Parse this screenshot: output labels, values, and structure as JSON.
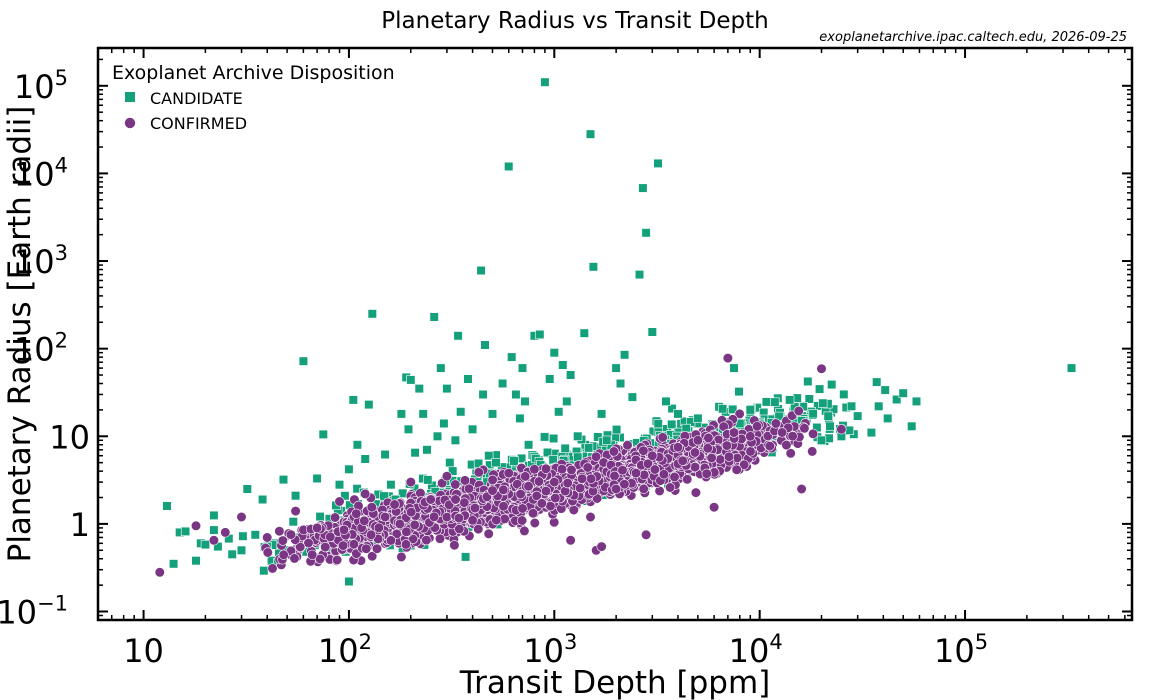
{
  "chart_data": {
    "type": "scatter",
    "title": "Planetary Radius vs Transit Depth",
    "source_note": "exoplanetarchive.ipac.caltech.edu, 2026-09-25",
    "xlabel": "Transit Depth [ppm]",
    "ylabel": "Planetary Radius [Earth radii]",
    "xscale": "log",
    "yscale": "log",
    "xlim": [
      6,
      650000
    ],
    "ylim": [
      0.08,
      270000
    ],
    "x_ticks": [
      {
        "value": 10,
        "base": "10",
        "exp": ""
      },
      {
        "value": 100,
        "base": "10",
        "exp": "2"
      },
      {
        "value": 1000,
        "base": "10",
        "exp": "3"
      },
      {
        "value": 10000,
        "base": "10",
        "exp": "4"
      },
      {
        "value": 100000,
        "base": "10",
        "exp": "5"
      }
    ],
    "y_ticks": [
      {
        "value": 0.1,
        "base": "10",
        "exp": "−1"
      },
      {
        "value": 1,
        "base": "1",
        "exp": ""
      },
      {
        "value": 10,
        "base": "10",
        "exp": ""
      },
      {
        "value": 100,
        "base": "10",
        "exp": "2"
      },
      {
        "value": 1000,
        "base": "10",
        "exp": "3"
      },
      {
        "value": 10000,
        "base": "10",
        "exp": "4"
      },
      {
        "value": 100000,
        "base": "10",
        "exp": "5"
      }
    ],
    "grid": false,
    "legend": {
      "title": "Exoplanet Archive Disposition",
      "placement": "top-left"
    },
    "series": [
      {
        "name": "CANDIDATE",
        "marker": "square",
        "color": "#14a07a",
        "points": [
          [
            13,
            1.6
          ],
          [
            14,
            0.35
          ],
          [
            15,
            0.8
          ],
          [
            16,
            0.82
          ],
          [
            18,
            0.38
          ],
          [
            19,
            0.6
          ],
          [
            20,
            0.58
          ],
          [
            22,
            1.25
          ],
          [
            22,
            0.85
          ],
          [
            23,
            0.55
          ],
          [
            26,
            0.68
          ],
          [
            27,
            0.45
          ],
          [
            30,
            0.5
          ],
          [
            32,
            2.5
          ],
          [
            35,
            0.75
          ],
          [
            38,
            1.9
          ],
          [
            40,
            0.55
          ],
          [
            42,
            0.38
          ],
          [
            45,
            0.36
          ],
          [
            48,
            3.2
          ],
          [
            50,
            0.5
          ],
          [
            55,
            2.1
          ],
          [
            60,
            72
          ],
          [
            62,
            0.48
          ],
          [
            70,
            3.3
          ],
          [
            75,
            10.5
          ],
          [
            80,
            0.5
          ],
          [
            90,
            2.8
          ],
          [
            100,
            0.22
          ],
          [
            100,
            4.2
          ],
          [
            105,
            26
          ],
          [
            110,
            8
          ],
          [
            120,
            5.5
          ],
          [
            125,
            23
          ],
          [
            130,
            250
          ],
          [
            140,
            1.0
          ],
          [
            150,
            6.2
          ],
          [
            160,
            2.8
          ],
          [
            170,
            1.3
          ],
          [
            180,
            18
          ],
          [
            185,
            0.9
          ],
          [
            190,
            47
          ],
          [
            195,
            12
          ],
          [
            200,
            44
          ],
          [
            210,
            6.5
          ],
          [
            220,
            35
          ],
          [
            230,
            18
          ],
          [
            240,
            7
          ],
          [
            250,
            0.9
          ],
          [
            260,
            230
          ],
          [
            270,
            10
          ],
          [
            280,
            60
          ],
          [
            290,
            14
          ],
          [
            300,
            35
          ],
          [
            310,
            5
          ],
          [
            320,
            4
          ],
          [
            330,
            9
          ],
          [
            340,
            140
          ],
          [
            350,
            19
          ],
          [
            360,
            2.2
          ],
          [
            370,
            0.42
          ],
          [
            380,
            45
          ],
          [
            400,
            12
          ],
          [
            420,
            3
          ],
          [
            440,
            780
          ],
          [
            450,
            30
          ],
          [
            460,
            110
          ],
          [
            480,
            6
          ],
          [
            500,
            18
          ],
          [
            520,
            5
          ],
          [
            560,
            40
          ],
          [
            600,
            12000
          ],
          [
            620,
            80
          ],
          [
            650,
            30
          ],
          [
            680,
            16
          ],
          [
            700,
            60
          ],
          [
            720,
            25
          ],
          [
            750,
            8
          ],
          [
            800,
            140
          ],
          [
            850,
            145
          ],
          [
            900,
            110000
          ],
          [
            950,
            45
          ],
          [
            1000,
            90
          ],
          [
            1050,
            19
          ],
          [
            1100,
            65
          ],
          [
            1150,
            25
          ],
          [
            1200,
            50
          ],
          [
            1300,
            10
          ],
          [
            1400,
            150
          ],
          [
            1500,
            28000
          ],
          [
            1550,
            860
          ],
          [
            1700,
            18
          ],
          [
            1800,
            9
          ],
          [
            2000,
            60
          ],
          [
            2100,
            40
          ],
          [
            2200,
            85
          ],
          [
            2400,
            28
          ],
          [
            2600,
            700
          ],
          [
            2700,
            6800
          ],
          [
            2800,
            2100
          ],
          [
            3000,
            155
          ],
          [
            3200,
            13000
          ],
          [
            3500,
            25
          ],
          [
            4000,
            18
          ],
          [
            4500,
            10
          ],
          [
            5000,
            16
          ],
          [
            6000,
            12
          ],
          [
            7000,
            8
          ],
          [
            7500,
            60
          ],
          [
            8000,
            14
          ],
          [
            8500,
            6
          ],
          [
            9000,
            20
          ],
          [
            10000,
            14
          ],
          [
            12000,
            13
          ],
          [
            14000,
            26
          ],
          [
            16000,
            15
          ],
          [
            20000,
            9
          ],
          [
            22000,
            13
          ],
          [
            25000,
            10
          ],
          [
            28000,
            22
          ],
          [
            30000,
            17
          ],
          [
            35000,
            11
          ],
          [
            38000,
            22
          ],
          [
            42000,
            16
          ],
          [
            50000,
            31
          ],
          [
            55000,
            13
          ],
          [
            58000,
            25
          ],
          [
            330000,
            60
          ]
        ],
        "cloud": {
          "count": 850,
          "seed": 11,
          "x_range": [
            25,
            60000
          ],
          "y_intercept": 1.0,
          "y_slope": 0.55,
          "y_scatter": 0.16
        }
      },
      {
        "name": "CONFIRMED",
        "marker": "circle",
        "color": "#7a3585",
        "points": [
          [
            12,
            0.28
          ],
          [
            18,
            0.95
          ],
          [
            22,
            0.65
          ],
          [
            25,
            0.8
          ],
          [
            30,
            1.2
          ],
          [
            40,
            0.7
          ],
          [
            55,
            1.4
          ],
          [
            70,
            0.9
          ],
          [
            90,
            1.8
          ],
          [
            120,
            2.2
          ],
          [
            150,
            1.2
          ],
          [
            180,
            0.42
          ],
          [
            200,
            3.0
          ],
          [
            250,
            1.9
          ],
          [
            300,
            3.5
          ],
          [
            400,
            1.1
          ],
          [
            500,
            2.4
          ],
          [
            600,
            3.8
          ],
          [
            700,
            1.5
          ],
          [
            800,
            4.2
          ],
          [
            1000,
            3.0
          ],
          [
            1200,
            0.65
          ],
          [
            1500,
            1.2
          ],
          [
            1600,
            0.5
          ],
          [
            1700,
            0.55
          ],
          [
            2000,
            2.5
          ],
          [
            2500,
            3.8
          ],
          [
            2800,
            0.75
          ],
          [
            3000,
            6.0
          ],
          [
            4000,
            7.5
          ],
          [
            5000,
            9.0
          ],
          [
            6000,
            1.55
          ],
          [
            7000,
            78
          ],
          [
            7500,
            11
          ],
          [
            9000,
            10
          ],
          [
            12000,
            14
          ],
          [
            16000,
            2.5
          ],
          [
            20000,
            59
          ],
          [
            25000,
            12
          ]
        ],
        "cloud": {
          "count": 2600,
          "seed": 7,
          "x_range": [
            28,
            26000
          ],
          "y_intercept": 0.78,
          "y_slope": 0.52,
          "y_scatter": 0.12
        }
      }
    ]
  }
}
